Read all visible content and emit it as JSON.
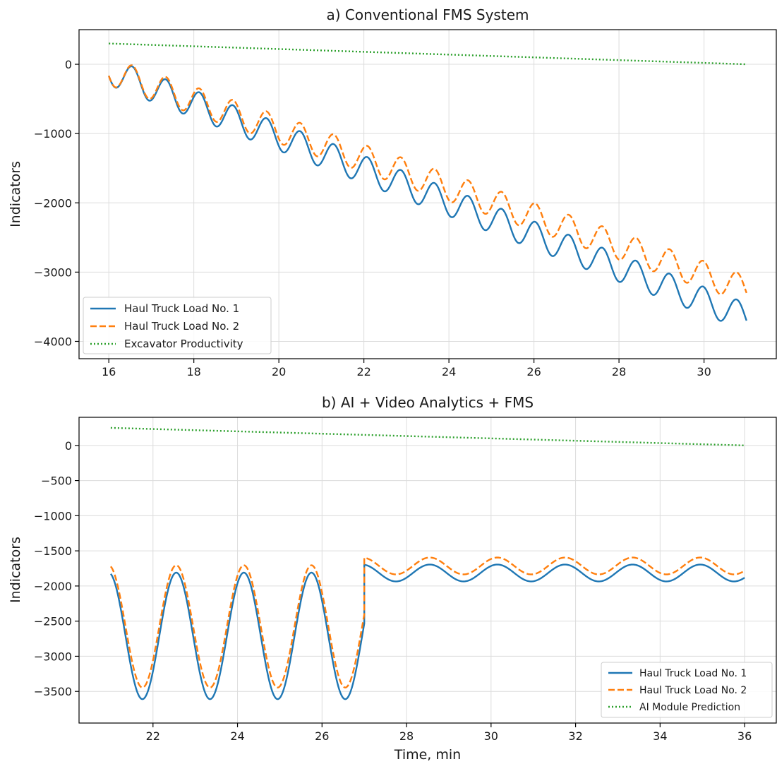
{
  "chart_data": [
    {
      "id": "a",
      "type": "line",
      "title": "a) Conventional FMS System",
      "xlabel": "",
      "ylabel": "Indicators",
      "xlim": [
        15.3,
        31.7
      ],
      "ylim": [
        -4250,
        500
      ],
      "xticks": [
        16,
        18,
        20,
        22,
        24,
        26,
        28,
        30
      ],
      "yticks": [
        -4000,
        -3000,
        -2000,
        -1000,
        0
      ],
      "grid": true,
      "legend_position": "bottom-left",
      "series": [
        {
          "name": "Haul Truck Load No. 1",
          "color": "#1f77b4",
          "style": "solid",
          "x_start": 16,
          "x_end": 31,
          "y_start": -100,
          "y_end": -3650,
          "amplitude": 200,
          "period": 0.79,
          "phase_peak_x": 16.55
        },
        {
          "name": "Haul Truck Load No. 2",
          "color": "#ff7f0e",
          "style": "dashed",
          "x_start": 16,
          "x_end": 31,
          "y_start": -100,
          "y_end": -3250,
          "amplitude": 200,
          "period": 0.79,
          "phase_peak_x": 16.55
        },
        {
          "name": "Excavator Productivity",
          "color": "#2ca02c",
          "style": "dotted",
          "x": [
            16,
            31
          ],
          "y": [
            300,
            0
          ]
        }
      ]
    },
    {
      "id": "b",
      "type": "line",
      "title": "b) AI + Video Analytics + FMS",
      "xlabel": "Time, min",
      "ylabel": "Indicators",
      "xlim": [
        20.25,
        36.75
      ],
      "ylim": [
        -3950,
        400
      ],
      "xticks": [
        22,
        24,
        26,
        28,
        30,
        32,
        34,
        36
      ],
      "yticks": [
        -3500,
        -3000,
        -2500,
        -2000,
        -1500,
        -1000,
        -500,
        0
      ],
      "grid": true,
      "legend_position": "bottom-right",
      "series": [
        {
          "name": "Haul Truck Load No. 1",
          "color": "#1f77b4",
          "style": "solid",
          "segments": [
            {
              "x_start": 21,
              "x_end": 27,
              "center": -2710,
              "amplitude": 900,
              "period": 1.6,
              "trough_x": 21.75
            },
            {
              "x_start": 27,
              "x_end": 36,
              "center": -1815,
              "amplitude": 120,
              "period": 1.6,
              "trough_x": 27.75
            }
          ]
        },
        {
          "name": "Haul Truck Load No. 2",
          "color": "#ff7f0e",
          "style": "dashed",
          "segments": [
            {
              "x_start": 21,
              "x_end": 27,
              "center": -2575,
              "amplitude": 870,
              "period": 1.6,
              "trough_x": 21.75
            },
            {
              "x_start": 27,
              "x_end": 36,
              "center": -1715,
              "amplitude": 120,
              "period": 1.6,
              "trough_x": 27.75
            }
          ]
        },
        {
          "name": "AI Module Prediction",
          "color": "#2ca02c",
          "style": "dotted",
          "x": [
            21,
            36
          ],
          "y": [
            250,
            0
          ]
        }
      ]
    }
  ]
}
